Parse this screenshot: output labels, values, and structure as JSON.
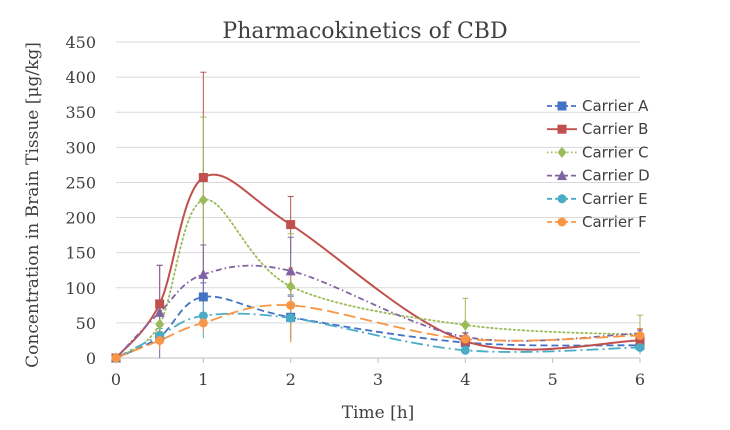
{
  "chart_data": {
    "type": "line",
    "title": "Pharmacokinetics of CBD",
    "xlabel": "Time [h]",
    "ylabel": "Concentration in Brain Tissue [μg/kg]",
    "xlim": [
      0,
      6
    ],
    "ylim": [
      0,
      450
    ],
    "x_ticks": [
      "0",
      "1",
      "2",
      "3",
      "4",
      "5",
      "6"
    ],
    "y_ticks": [
      "0",
      "50",
      "100",
      "150",
      "200",
      "250",
      "300",
      "350",
      "400",
      "450"
    ],
    "grid": "horizontal",
    "legend_position": "right",
    "x": [
      0,
      0.5,
      1,
      2,
      4,
      6
    ],
    "series": [
      {
        "name": "Carrier A",
        "color": "#4472C4",
        "marker": "square",
        "dash": "dashed",
        "values": [
          0,
          30,
          87,
          58,
          22,
          18
        ],
        "errors": [
          0,
          15,
          20,
          30,
          8,
          8
        ]
      },
      {
        "name": "Carrier B",
        "color": "#C0504D",
        "marker": "square",
        "dash": "solid",
        "values": [
          0,
          77,
          257,
          190,
          24,
          25
        ],
        "errors": [
          0,
          55,
          150,
          40,
          8,
          8
        ]
      },
      {
        "name": "Carrier C",
        "color": "#9BBB59",
        "marker": "diamond",
        "dash": "dotted",
        "values": [
          0,
          48,
          225,
          102,
          47,
          33
        ],
        "errors": [
          0,
          20,
          118,
          75,
          38,
          28
        ]
      },
      {
        "name": "Carrier D",
        "color": "#8064A2",
        "marker": "triangle",
        "dash": "dashdot",
        "values": [
          0,
          65,
          119,
          124,
          30,
          35
        ],
        "errors": [
          0,
          67,
          42,
          48,
          6,
          5
        ]
      },
      {
        "name": "Carrier E",
        "color": "#4BACC6",
        "marker": "circle",
        "dash": "longdashdot",
        "values": [
          0,
          32,
          60,
          57,
          11,
          15
        ],
        "errors": [
          0,
          10,
          32,
          33,
          4,
          5
        ]
      },
      {
        "name": "Carrier F",
        "color": "#F79646",
        "marker": "circle",
        "dash": "longdash",
        "values": [
          0,
          25,
          50,
          75,
          27,
          32
        ],
        "errors": [
          0,
          13,
          14,
          53,
          8,
          10
        ]
      }
    ]
  }
}
